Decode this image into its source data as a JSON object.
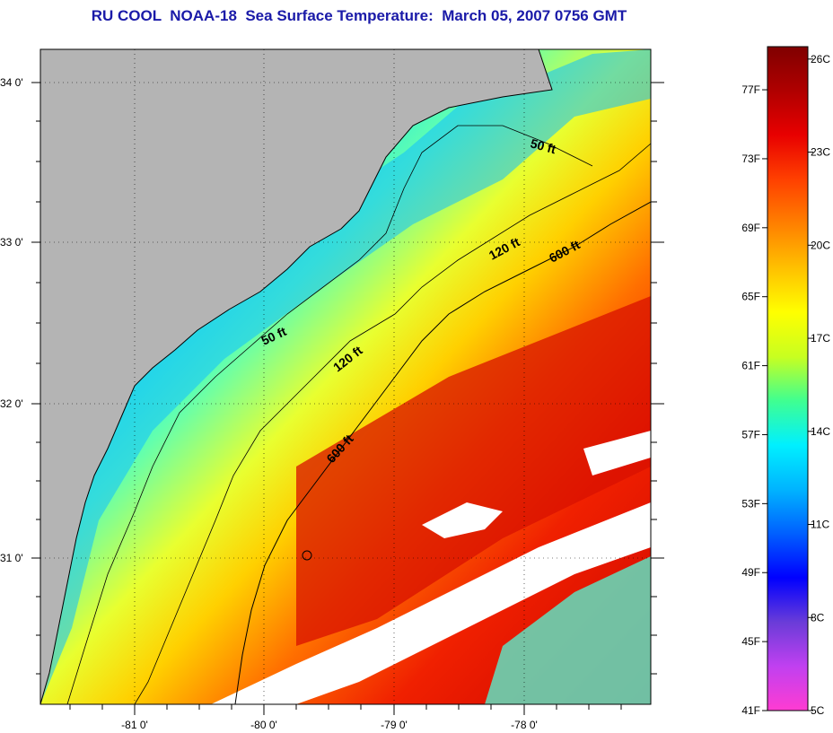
{
  "title": "RU COOL  NOAA-18  Sea Surface Temperature:  March 05, 2007 0756 GMT",
  "lat_labels": [
    "34 0'",
    "33 0'",
    "32 0'",
    "31 0'"
  ],
  "lon_labels": [
    "-81 0'",
    "-80 0'",
    "-79 0'",
    "-78 0'"
  ],
  "contours": {
    "c50_a": "50 ft",
    "c50_b": "50 ft",
    "c120_a": "120 ft",
    "c120_b": "120 ft",
    "c600_a": "600 ft",
    "c600_b": "600 ft"
  },
  "colorbar": {
    "f_labels": [
      "77F",
      "73F",
      "69F",
      "65F",
      "61F",
      "57F",
      "53F",
      "49F",
      "45F",
      "41F"
    ],
    "c_labels": [
      "26C",
      "23C",
      "20C",
      "17C",
      "14C",
      "11C",
      "8C",
      "5C"
    ],
    "stops": [
      "#ff3cd2",
      "#c040f0",
      "#6a3cd8",
      "#0000ff",
      "#0060ff",
      "#00b4ff",
      "#00f0ff",
      "#40ff90",
      "#c8ff20",
      "#ffff00",
      "#ffc000",
      "#ff8000",
      "#ff4000",
      "#e80000",
      "#b00000",
      "#800000"
    ]
  },
  "colors": {
    "land": "#b4b4b4",
    "title": "#1a1aa8",
    "gulf_stream": "#e01000",
    "shelf": "#00d8ff",
    "cloud": "#ffffff"
  }
}
